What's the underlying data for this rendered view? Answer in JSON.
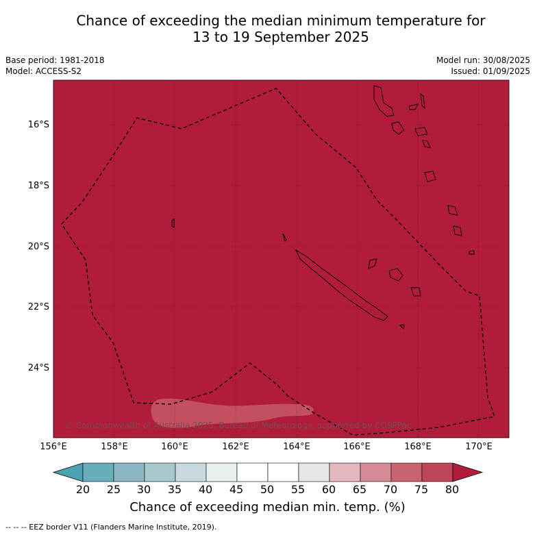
{
  "title": {
    "line1": "Chance of exceeding the median minimum temperature for",
    "line2": "13 to 19 September 2025"
  },
  "meta": {
    "base_period": "Base period: 1981-2018",
    "model": "Model: ACCESS-S2",
    "model_run": "Model run: 30/08/2025",
    "issued": "Issued: 01/09/2025"
  },
  "map": {
    "fill_color": "#b01c3a",
    "region_lat": [
      -15.3,
      -26.0
    ],
    "region_lon": [
      156.0,
      171.0
    ],
    "lat_labels": [
      "16°S",
      "18°S",
      "20°S",
      "22°S",
      "24°S"
    ],
    "lon_labels": [
      "156°E",
      "158°E",
      "160°E",
      "162°E",
      "164°E",
      "166°E",
      "168°E",
      "170°E"
    ],
    "copyright": "© Commonwealth of Australia 2025, Bureau of Meteorology, supported by COSPPac"
  },
  "colorbar": {
    "ticks": [
      "20",
      "25",
      "30",
      "35",
      "40",
      "45",
      "50",
      "55",
      "60",
      "65",
      "70",
      "75",
      "80"
    ],
    "colors": [
      "#67adba",
      "#8ab7c3",
      "#a9c8cd",
      "#c8dade",
      "#e9f0f2",
      "#ffffff",
      "#ffffff",
      "#e6e6e6",
      "#e2b7bd",
      "#d58a96",
      "#ca6370",
      "#bd4558"
    ],
    "under_color": "#4aa3b3",
    "over_color": "#b01c3a",
    "label": "Chance of exceeding median min. temp. (%)"
  },
  "footnote": "--  --  -- EEZ border V11 (Flanders Marine Institute, 2019)."
}
